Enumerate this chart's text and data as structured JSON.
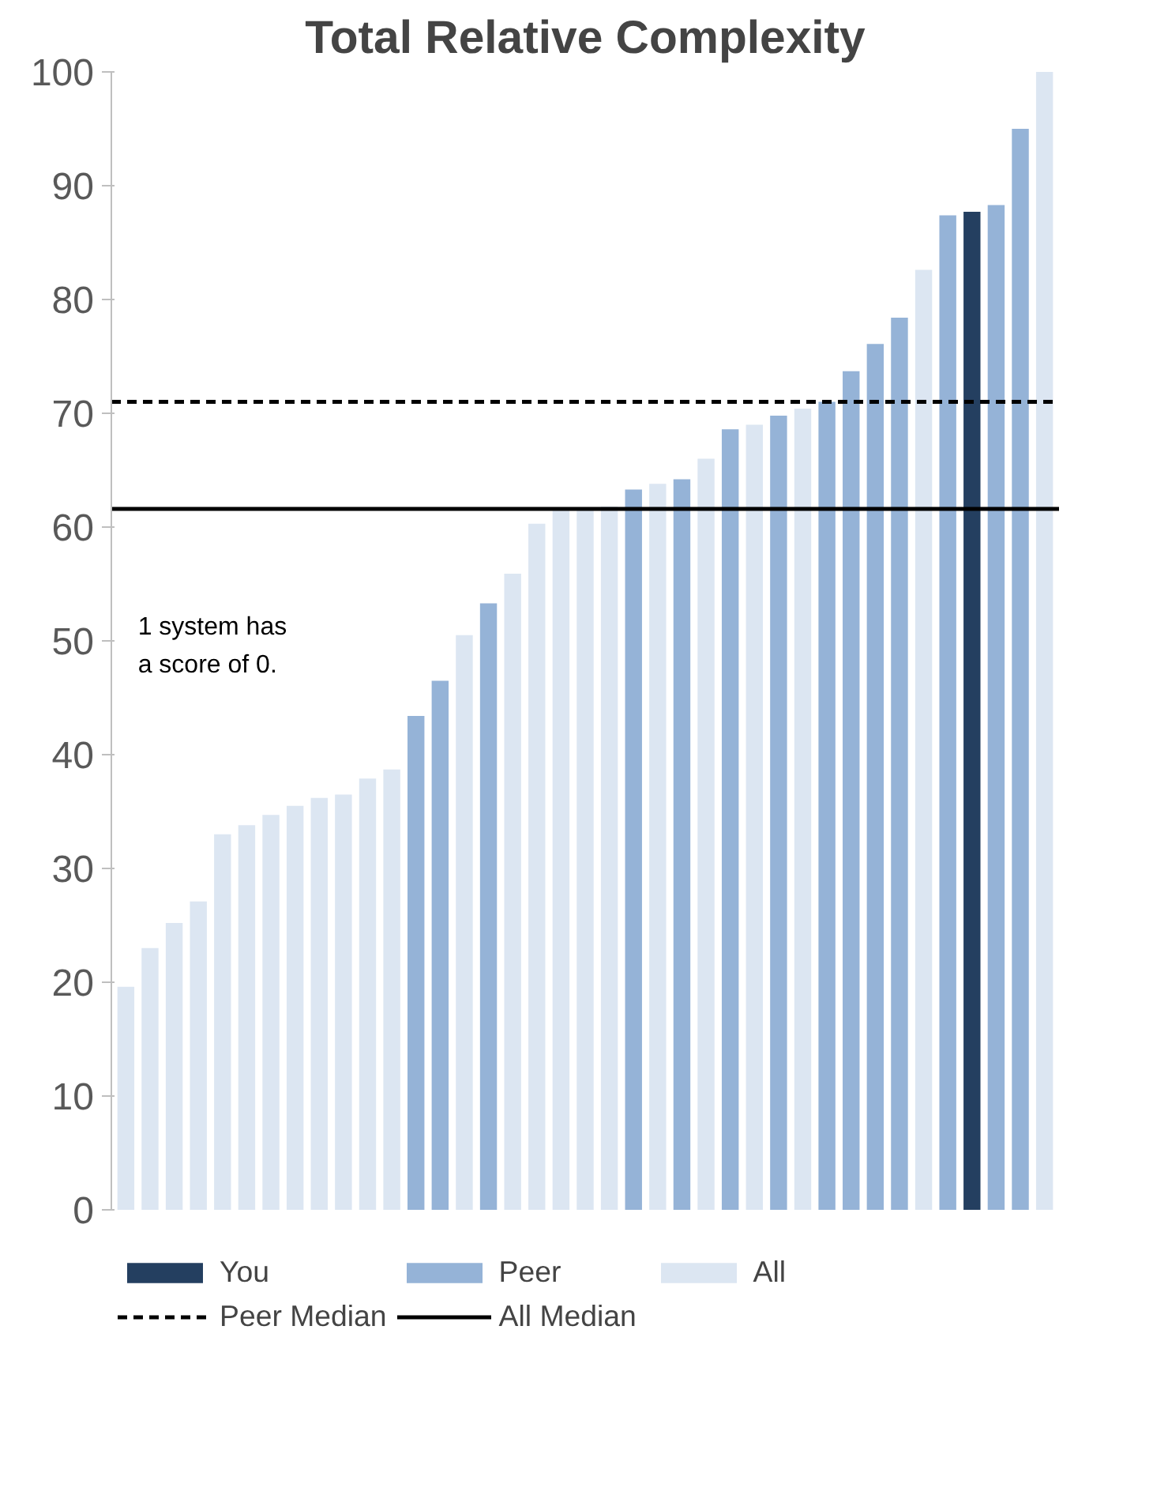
{
  "chart_data": {
    "type": "bar",
    "title": "Total Relative Complexity",
    "categories": [
      null,
      null,
      null,
      null,
      null,
      null,
      null,
      null,
      null,
      null,
      null,
      null,
      null,
      null,
      null,
      null,
      null,
      null,
      null,
      null,
      null,
      null,
      null,
      null,
      null,
      null,
      null,
      null,
      null,
      null,
      null,
      null,
      null,
      null,
      null,
      null,
      null,
      null,
      null
    ],
    "series": [
      {
        "name": "You",
        "color": "#243f60",
        "values": [
          null,
          null,
          null,
          null,
          null,
          null,
          null,
          null,
          null,
          null,
          null,
          null,
          null,
          null,
          null,
          null,
          null,
          null,
          null,
          null,
          null,
          null,
          null,
          null,
          null,
          null,
          null,
          null,
          null,
          null,
          null,
          null,
          null,
          null,
          null,
          87.7,
          null,
          null,
          null
        ]
      },
      {
        "name": "Peer",
        "color": "#95b3d7",
        "values": [
          null,
          null,
          null,
          null,
          null,
          null,
          null,
          null,
          null,
          null,
          null,
          null,
          43.4,
          46.5,
          null,
          53.3,
          null,
          null,
          null,
          null,
          null,
          63.3,
          null,
          64.2,
          null,
          68.6,
          null,
          69.8,
          null,
          71.0,
          73.7,
          76.1,
          78.4,
          null,
          87.4,
          null,
          88.3,
          95.0,
          null
        ]
      },
      {
        "name": "All",
        "color": "#dce6f2",
        "values": [
          19.6,
          23.0,
          25.2,
          27.1,
          33.0,
          33.8,
          34.7,
          35.5,
          36.2,
          36.5,
          37.9,
          38.7,
          null,
          null,
          50.5,
          null,
          55.9,
          60.3,
          61.5,
          61.6,
          61.8,
          null,
          63.8,
          null,
          66.0,
          null,
          69.0,
          null,
          70.4,
          null,
          null,
          null,
          null,
          82.6,
          null,
          null,
          null,
          null,
          100.0
        ]
      }
    ],
    "ylim": [
      0,
      100
    ],
    "yticks": [
      0,
      10,
      20,
      30,
      40,
      50,
      60,
      70,
      80,
      90,
      100
    ],
    "ref_lines": [
      {
        "axis": "y",
        "value": 71.0,
        "label": "Peer Median",
        "color": "#000000",
        "line_style": "dashed"
      },
      {
        "axis": "y",
        "value": 61.6,
        "label": "All Median",
        "color": "#000000",
        "line_style": "solid"
      }
    ],
    "annotations": [
      "1 system has a score of 0."
    ],
    "grid": false,
    "legend": "bottom",
    "tick_labels": "y"
  }
}
